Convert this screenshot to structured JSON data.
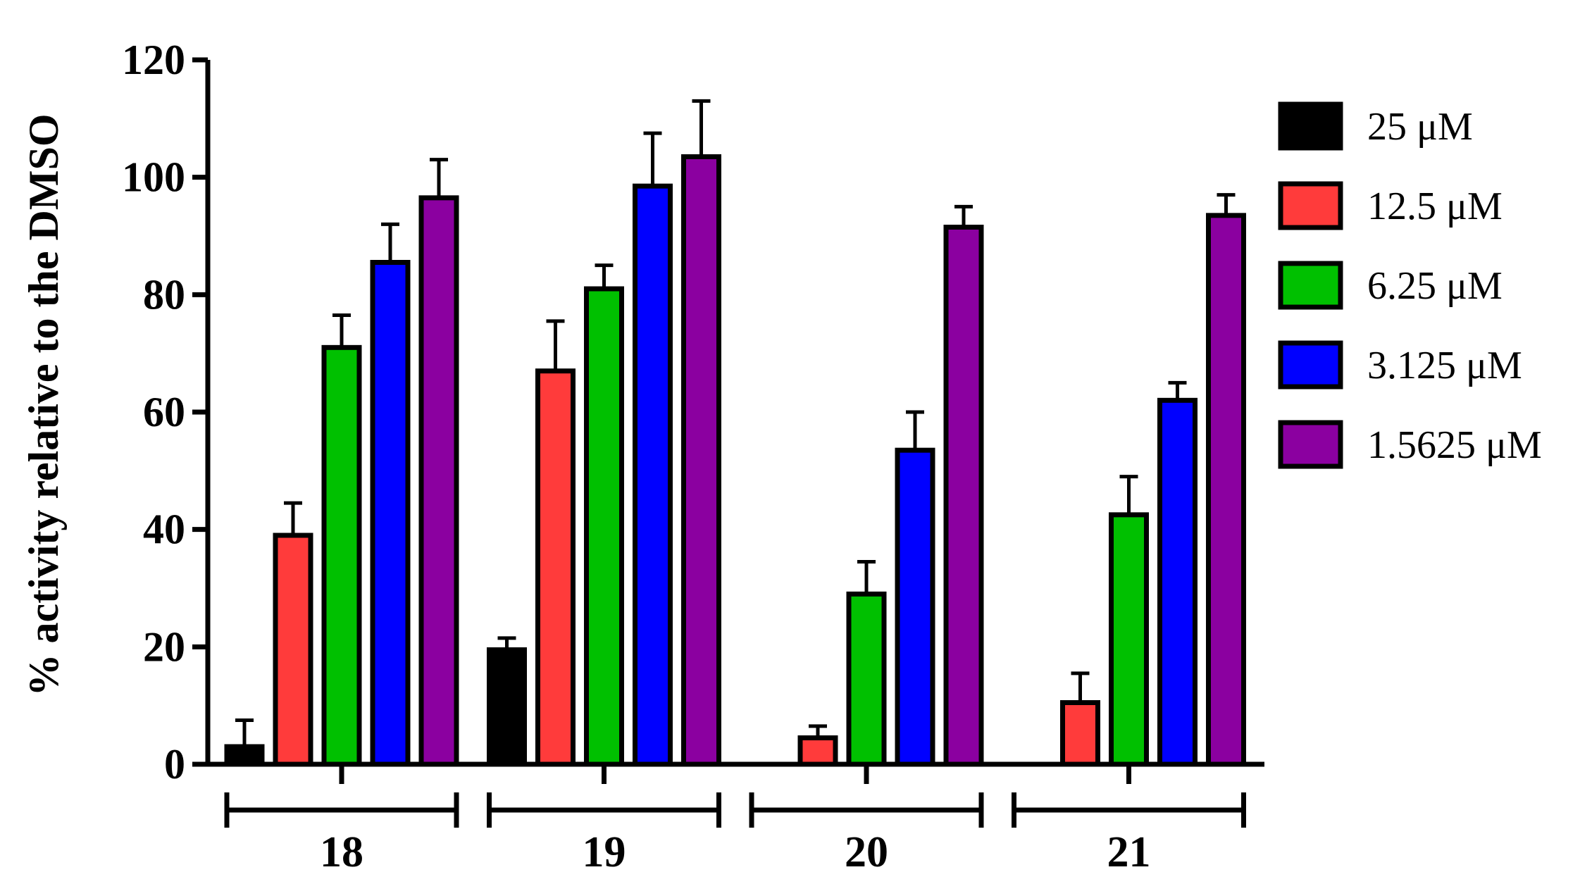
{
  "chart_data": {
    "type": "bar",
    "ylabel": "% activity relative to the DMSO",
    "xlabel": "",
    "ylim": [
      0,
      120
    ],
    "yticks": [
      "0",
      "20",
      "40",
      "60",
      "80",
      "100",
      "120"
    ],
    "categories": [
      "18",
      "19",
      "20",
      "21"
    ],
    "legend_position": "right",
    "series": [
      {
        "name": "25 μM",
        "color": "#000000",
        "values": [
          3,
          19.5,
          0,
          0
        ],
        "errors": [
          4.5,
          2,
          0,
          0
        ]
      },
      {
        "name": "12.5 μM",
        "color": "#ff3b3b",
        "values": [
          39,
          67,
          4.5,
          10.5
        ],
        "errors": [
          5.5,
          8.5,
          2,
          5
        ]
      },
      {
        "name": "6.25 μM",
        "color": "#00c000",
        "values": [
          71,
          81,
          29,
          42.5
        ],
        "errors": [
          5.5,
          4,
          5.5,
          6.5
        ]
      },
      {
        "name": "3.125 μM",
        "color": "#0000ff",
        "values": [
          85.5,
          98.5,
          53.5,
          62
        ],
        "errors": [
          6.5,
          9,
          6.5,
          3
        ]
      },
      {
        "name": "1.5625 μM",
        "color": "#8b00a0",
        "values": [
          96.5,
          103.5,
          91.5,
          93.5
        ],
        "errors": [
          6.5,
          9.5,
          3.5,
          3.5
        ]
      }
    ]
  }
}
